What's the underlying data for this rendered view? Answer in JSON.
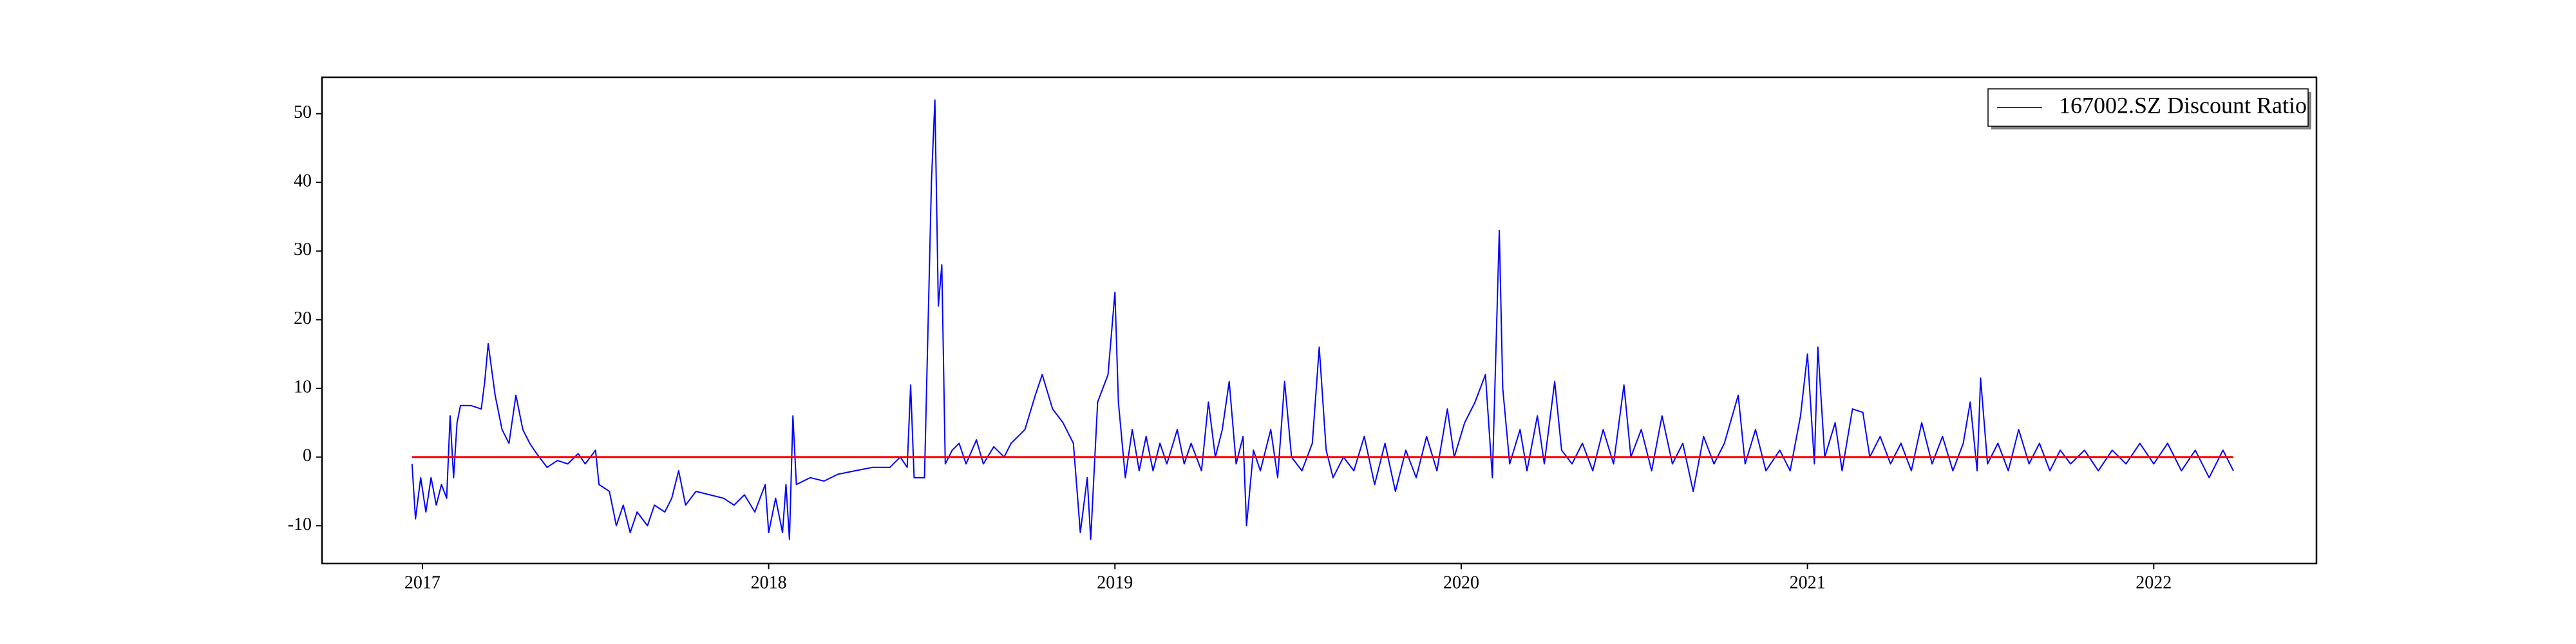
{
  "chart_data": {
    "type": "line",
    "x": [
      2016.97,
      2016.98,
      2016.995,
      2017.01,
      2017.025,
      2017.04,
      2017.055,
      2017.07,
      2017.08,
      2017.09,
      2017.1,
      2017.11,
      2017.14,
      2017.17,
      2017.18,
      2017.19,
      2017.21,
      2017.23,
      2017.25,
      2017.27,
      2017.29,
      2017.31,
      2017.33,
      2017.36,
      2017.39,
      2017.42,
      2017.45,
      2017.47,
      2017.5,
      2017.51,
      2017.54,
      2017.56,
      2017.58,
      2017.6,
      2017.62,
      2017.65,
      2017.67,
      2017.7,
      2017.72,
      2017.74,
      2017.76,
      2017.79,
      2017.83,
      2017.87,
      2017.9,
      2017.93,
      2017.96,
      2017.99,
      2018.0,
      2018.02,
      2018.04,
      2018.05,
      2018.06,
      2018.07,
      2018.08,
      2018.12,
      2018.16,
      2018.2,
      2018.25,
      2018.3,
      2018.35,
      2018.38,
      2018.4,
      2018.41,
      2018.42,
      2018.45,
      2018.47,
      2018.48,
      2018.49,
      2018.5,
      2018.51,
      2018.53,
      2018.55,
      2018.57,
      2018.6,
      2018.62,
      2018.65,
      2018.68,
      2018.7,
      2018.74,
      2018.77,
      2018.79,
      2018.82,
      2018.85,
      2018.88,
      2018.9,
      2018.92,
      2018.93,
      2018.95,
      2018.98,
      2019.0,
      2019.01,
      2019.03,
      2019.05,
      2019.07,
      2019.09,
      2019.11,
      2019.13,
      2019.15,
      2019.18,
      2019.2,
      2019.22,
      2019.25,
      2019.27,
      2019.29,
      2019.31,
      2019.33,
      2019.35,
      2019.37,
      2019.38,
      2019.4,
      2019.42,
      2019.45,
      2019.47,
      2019.49,
      2019.51,
      2019.54,
      2019.57,
      2019.59,
      2019.61,
      2019.63,
      2019.66,
      2019.69,
      2019.72,
      2019.75,
      2019.78,
      2019.81,
      2019.84,
      2019.87,
      2019.9,
      2019.93,
      2019.96,
      2019.98,
      2020.01,
      2020.04,
      2020.07,
      2020.09,
      2020.11,
      2020.12,
      2020.14,
      2020.17,
      2020.19,
      2020.22,
      2020.24,
      2020.27,
      2020.29,
      2020.32,
      2020.35,
      2020.38,
      2020.41,
      2020.44,
      2020.47,
      2020.49,
      2020.52,
      2020.55,
      2020.58,
      2020.61,
      2020.64,
      2020.67,
      2020.7,
      2020.73,
      2020.76,
      2020.8,
      2020.82,
      2020.85,
      2020.88,
      2020.92,
      2020.95,
      2020.98,
      2021.0,
      2021.02,
      2021.03,
      2021.05,
      2021.08,
      2021.1,
      2021.13,
      2021.16,
      2021.18,
      2021.21,
      2021.24,
      2021.27,
      2021.3,
      2021.33,
      2021.36,
      2021.39,
      2021.42,
      2021.45,
      2021.47,
      2021.49,
      2021.5,
      2021.52,
      2021.55,
      2021.58,
      2021.61,
      2021.64,
      2021.67,
      2021.7,
      2021.73,
      2021.76,
      2021.8,
      2021.84,
      2021.88,
      2021.92,
      2021.96,
      2022.0,
      2022.04,
      2022.08,
      2022.12,
      2022.16,
      2022.2,
      2022.23
    ],
    "series": [
      {
        "name": "167002.SZ Discount Ratio",
        "color": "#0000ff",
        "values": [
          -1,
          -9,
          -3,
          -8,
          -3,
          -7,
          -4,
          -6,
          6,
          -3,
          5,
          7.5,
          7.5,
          7,
          11,
          16.5,
          9,
          4,
          2,
          9,
          4,
          2,
          0.5,
          -1.5,
          -0.5,
          -1,
          0.5,
          -1,
          1,
          -4,
          -5,
          -10,
          -7,
          -11,
          -8,
          -10,
          -7,
          -8,
          -6,
          -2,
          -7,
          -5,
          -5.5,
          -6,
          -7,
          -5.5,
          -8,
          -4,
          -11,
          -6,
          -11,
          -4,
          -12,
          6,
          -4,
          -3,
          -3.5,
          -2.5,
          -2,
          -1.5,
          -1.5,
          0,
          -1.5,
          10.5,
          -3,
          -3,
          40,
          52,
          22,
          28,
          -1,
          1,
          2,
          -1,
          2.5,
          -1,
          1.5,
          0,
          2,
          4,
          9,
          12,
          7,
          5,
          2,
          -11,
          -3,
          -12,
          8,
          12,
          24,
          8,
          -3,
          4,
          -2,
          3,
          -2,
          2,
          -1,
          4,
          -1,
          2,
          -2,
          8,
          0,
          4,
          11,
          -1,
          3,
          -10,
          1,
          -2,
          4,
          -3,
          11,
          0,
          -2,
          2,
          16,
          1,
          -3,
          0,
          -2,
          3,
          -4,
          2,
          -5,
          1,
          -3,
          3,
          -2,
          7,
          0,
          5,
          8,
          12,
          -3,
          33,
          10,
          -1,
          4,
          -2,
          6,
          -1,
          11,
          1,
          -1,
          2,
          -2,
          4,
          -1,
          10.5,
          0,
          4,
          -2,
          6,
          -1,
          2,
          -5,
          3,
          -1,
          2,
          9,
          -1,
          4,
          -2,
          1,
          -2,
          6,
          15,
          -1,
          16,
          0,
          5,
          -2,
          7,
          6.5,
          0,
          3,
          -1,
          2,
          -2,
          5,
          -1,
          3,
          -2,
          2,
          8,
          -2,
          11.5,
          -1,
          2,
          -2,
          4,
          -1,
          2,
          -2,
          1,
          -1,
          1,
          -2,
          1,
          -1,
          2,
          -1,
          2,
          -2,
          1,
          -3,
          1,
          -2
        ]
      }
    ],
    "hline": {
      "y": 0,
      "color": "#ff0000"
    },
    "xlim": [
      2016.71,
      2022.47
    ],
    "xticks": [
      2017,
      2018,
      2019,
      2020,
      2021,
      2022
    ],
    "ylim": [
      -15.5,
      55.3
    ],
    "yticks": [
      -10,
      0,
      10,
      20,
      30,
      40,
      50
    ],
    "legend": "upper right"
  }
}
